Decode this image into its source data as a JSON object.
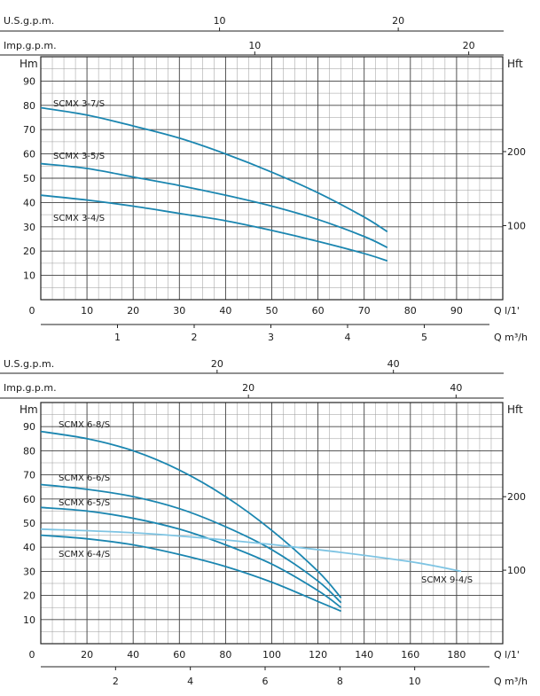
{
  "chart_data": [
    {
      "type": "line",
      "top_axes": [
        {
          "label": "U.S.g.p.m.",
          "ticks": [
            10,
            20
          ]
        },
        {
          "label": "Imp.g.p.m.",
          "ticks": [
            10,
            20
          ]
        }
      ],
      "ylabel": "Hm",
      "y2label": "Hft",
      "y_ticks": [
        10,
        20,
        30,
        40,
        50,
        60,
        70,
        80,
        90
      ],
      "y2_ticks": [
        100,
        200
      ],
      "x_origin_label": "0",
      "x_ticks": [
        10,
        20,
        30,
        40,
        50,
        60,
        70,
        80,
        90
      ],
      "xlabel": "Q  l/1'",
      "x2label": "Q  m³/h",
      "x2_ticks": [
        1,
        2,
        3,
        4,
        5
      ],
      "xlim": [
        0,
        100
      ],
      "ylim": [
        0,
        100
      ],
      "grid": true,
      "colors": {
        "series": "#1b86b0"
      },
      "series": [
        {
          "name": "SCMX 3-7/S",
          "x": [
            0,
            10,
            20,
            30,
            40,
            50,
            60,
            70,
            75
          ],
          "y": [
            79,
            76,
            71.5,
            66.5,
            60,
            52.5,
            44,
            34,
            28
          ]
        },
        {
          "name": "SCMX 3-5/S",
          "x": [
            0,
            10,
            20,
            30,
            40,
            50,
            60,
            70,
            75
          ],
          "y": [
            56,
            54,
            50.5,
            47,
            43,
            38.5,
            33,
            26,
            21.5
          ]
        },
        {
          "name": "SCMX 3-4/S",
          "x": [
            0,
            10,
            20,
            30,
            40,
            50,
            60,
            70,
            75
          ],
          "y": [
            43,
            41,
            38.5,
            35.5,
            32.5,
            28.5,
            24,
            19,
            16
          ]
        }
      ]
    },
    {
      "type": "line",
      "top_axes": [
        {
          "label": "U.S.g.p.m.",
          "ticks": [
            20,
            40
          ]
        },
        {
          "label": "Imp.g.p.m.",
          "ticks": [
            20,
            40
          ]
        }
      ],
      "ylabel": "Hm",
      "y2label": "Hft",
      "y_ticks": [
        10,
        20,
        30,
        40,
        50,
        60,
        70,
        80,
        90
      ],
      "y2_ticks": [
        100,
        200
      ],
      "x_origin_label": "0",
      "x_ticks": [
        20,
        40,
        60,
        80,
        100,
        120,
        140,
        160,
        180
      ],
      "xlabel": "Q  l/1'",
      "x2label": "Q  m³/h",
      "x2_ticks": [
        2,
        4,
        6,
        8,
        10
      ],
      "xlim": [
        0,
        200
      ],
      "ylim": [
        0,
        100
      ],
      "grid": true,
      "colors": {
        "series": "#1b86b0",
        "highlight": "#7ec4e3"
      },
      "series": [
        {
          "name": "SCMX 6-8/S",
          "x": [
            0,
            20,
            40,
            60,
            80,
            100,
            120,
            130
          ],
          "y": [
            88,
            85,
            80,
            72,
            61,
            47,
            30,
            19
          ]
        },
        {
          "name": "SCMX 6-6/S",
          "x": [
            0,
            20,
            40,
            60,
            80,
            100,
            120,
            130
          ],
          "y": [
            66,
            64,
            61,
            56,
            48.5,
            39,
            26,
            17
          ]
        },
        {
          "name": "SCMX 6-5/S",
          "x": [
            0,
            20,
            40,
            60,
            80,
            100,
            120,
            130
          ],
          "y": [
            56.5,
            55,
            52,
            47.5,
            41,
            33,
            22,
            15
          ]
        },
        {
          "name": "SCMX 6-4/S",
          "x": [
            0,
            20,
            40,
            60,
            80,
            100,
            120,
            130
          ],
          "y": [
            45,
            43.5,
            41,
            37,
            32,
            25.5,
            17.5,
            13.5
          ]
        },
        {
          "name": "SCMX 9-4/S",
          "x": [
            0,
            40,
            80,
            120,
            160,
            182
          ],
          "y": [
            47.5,
            46,
            43,
            39,
            34,
            30
          ],
          "highlight": true
        }
      ]
    }
  ]
}
